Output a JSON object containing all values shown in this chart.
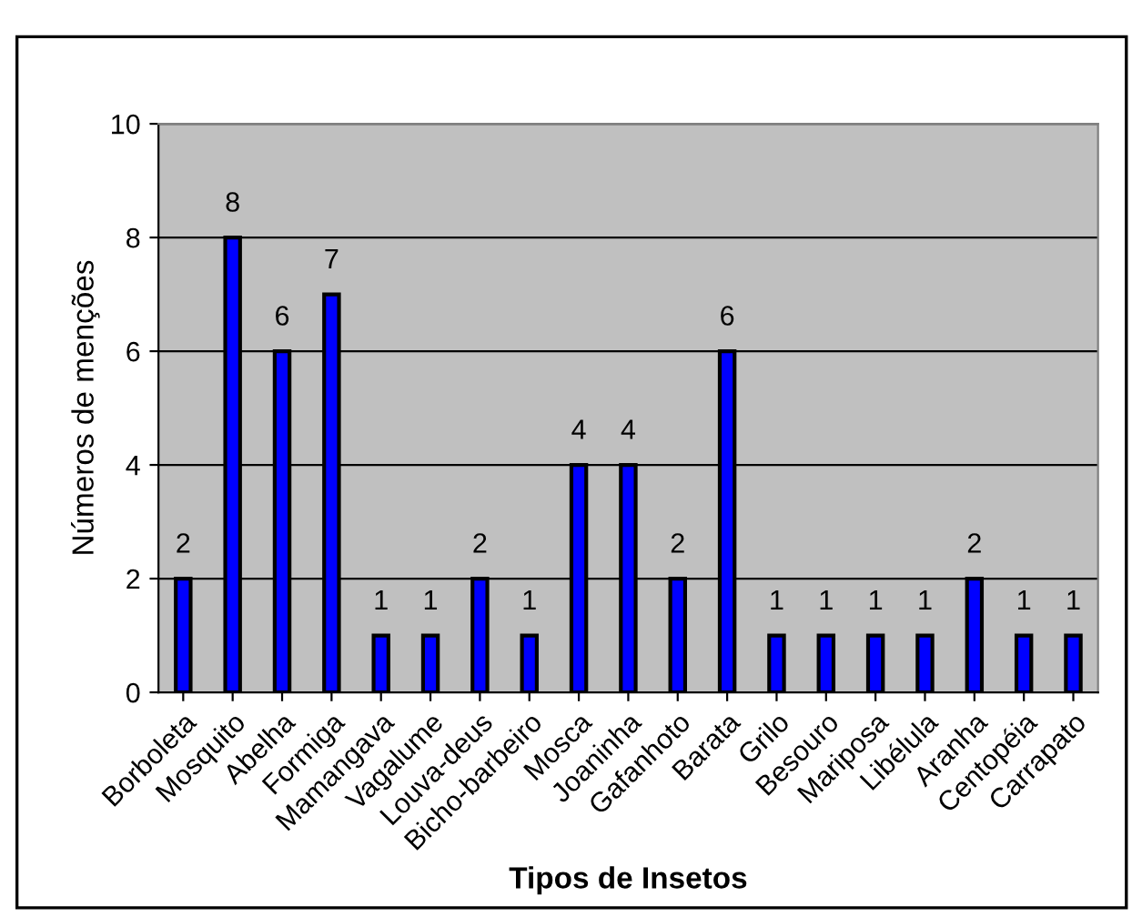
{
  "chart_data": {
    "type": "bar",
    "xlabel": "Tipos de Insetos",
    "ylabel": "Números de menções",
    "categories": [
      "Borboleta",
      "Mosquito",
      "Abelha",
      "Formiga",
      "Mamangava",
      "Vagalume",
      "Louva-deus",
      "Bicho-barbeiro",
      "Mosca",
      "Joaninha",
      "Gafanhoto",
      "Barata",
      "Grilo",
      "Besouro",
      "Mariposa",
      "Libélula",
      "Aranha",
      "Centopéia",
      "Carrapato"
    ],
    "values": [
      2,
      8,
      6,
      7,
      1,
      1,
      2,
      1,
      4,
      4,
      2,
      6,
      1,
      1,
      1,
      1,
      2,
      1,
      1
    ],
    "color": "#0000ff",
    "ylim": [
      0,
      10
    ],
    "yticks": [
      0,
      2,
      4,
      6,
      8,
      10
    ],
    "grid": "y",
    "data_labels": true
  }
}
